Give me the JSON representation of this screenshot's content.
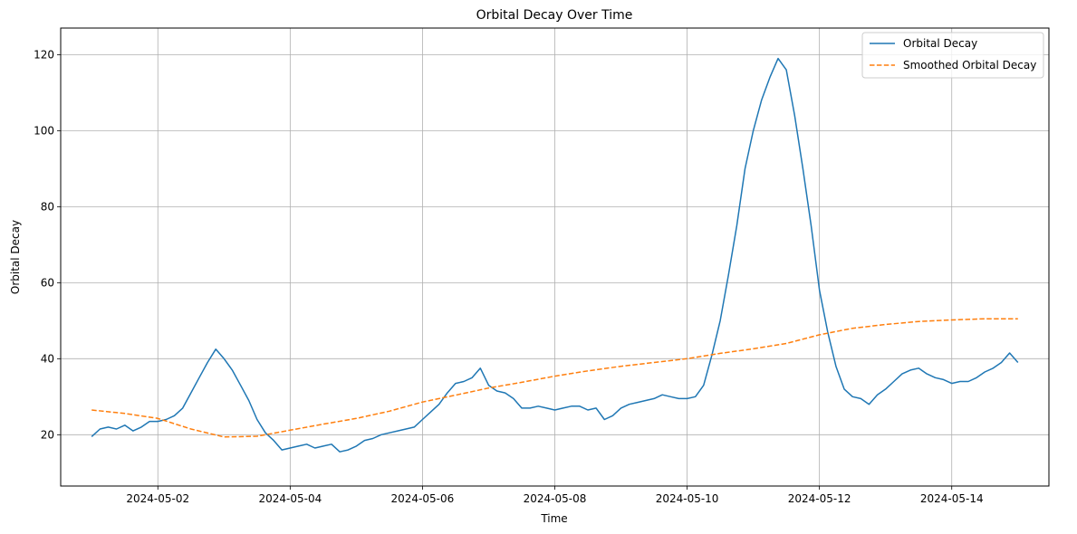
{
  "chart_data": {
    "type": "line",
    "title": "Orbital Decay Over Time",
    "xlabel": "Time",
    "ylabel": "Orbital Decay",
    "xlim": [
      "2024-04-30T12:45",
      "2024-05-15T11:15"
    ],
    "ylim": [
      6.5,
      127
    ],
    "x_ticks": [
      "2024-05-02",
      "2024-05-04",
      "2024-05-06",
      "2024-05-08",
      "2024-05-10",
      "2024-05-12",
      "2024-05-14"
    ],
    "y_ticks": [
      20,
      40,
      60,
      80,
      100,
      120
    ],
    "grid": true,
    "legend_position": "top-right",
    "series": [
      {
        "name": "Orbital Decay",
        "color": "#1f77b4",
        "style": "solid",
        "points": [
          [
            "2024-05-01T00:00",
            19.5
          ],
          [
            "2024-05-01T03:00",
            21.5
          ],
          [
            "2024-05-01T06:00",
            22.0
          ],
          [
            "2024-05-01T09:00",
            21.5
          ],
          [
            "2024-05-01T12:00",
            22.5
          ],
          [
            "2024-05-01T15:00",
            21.0
          ],
          [
            "2024-05-01T18:00",
            22.0
          ],
          [
            "2024-05-01T21:00",
            23.5
          ],
          [
            "2024-05-02T00:00",
            23.5
          ],
          [
            "2024-05-02T03:00",
            24.0
          ],
          [
            "2024-05-02T06:00",
            25.0
          ],
          [
            "2024-05-02T09:00",
            27.0
          ],
          [
            "2024-05-02T12:00",
            31.0
          ],
          [
            "2024-05-02T15:00",
            35.0
          ],
          [
            "2024-05-02T18:00",
            39.0
          ],
          [
            "2024-05-02T21:00",
            42.5
          ],
          [
            "2024-05-03T00:00",
            40.0
          ],
          [
            "2024-05-03T03:00",
            37.0
          ],
          [
            "2024-05-03T06:00",
            33.0
          ],
          [
            "2024-05-03T09:00",
            29.0
          ],
          [
            "2024-05-03T12:00",
            24.0
          ],
          [
            "2024-05-03T15:00",
            20.5
          ],
          [
            "2024-05-03T18:00",
            18.5
          ],
          [
            "2024-05-03T21:00",
            16.0
          ],
          [
            "2024-05-04T00:00",
            16.5
          ],
          [
            "2024-05-04T03:00",
            17.0
          ],
          [
            "2024-05-04T06:00",
            17.5
          ],
          [
            "2024-05-04T09:00",
            16.5
          ],
          [
            "2024-05-04T12:00",
            17.0
          ],
          [
            "2024-05-04T15:00",
            17.5
          ],
          [
            "2024-05-04T18:00",
            15.5
          ],
          [
            "2024-05-04T21:00",
            16.0
          ],
          [
            "2024-05-05T00:00",
            17.0
          ],
          [
            "2024-05-05T03:00",
            18.5
          ],
          [
            "2024-05-05T06:00",
            19.0
          ],
          [
            "2024-05-05T09:00",
            20.0
          ],
          [
            "2024-05-05T12:00",
            20.5
          ],
          [
            "2024-05-05T15:00",
            21.0
          ],
          [
            "2024-05-05T18:00",
            21.5
          ],
          [
            "2024-05-05T21:00",
            22.0
          ],
          [
            "2024-05-06T00:00",
            24.0
          ],
          [
            "2024-05-06T03:00",
            26.0
          ],
          [
            "2024-05-06T06:00",
            28.0
          ],
          [
            "2024-05-06T09:00",
            31.0
          ],
          [
            "2024-05-06T12:00",
            33.5
          ],
          [
            "2024-05-06T15:00",
            34.0
          ],
          [
            "2024-05-06T18:00",
            35.0
          ],
          [
            "2024-05-06T21:00",
            37.5
          ],
          [
            "2024-05-07T00:00",
            33.0
          ],
          [
            "2024-05-07T03:00",
            31.5
          ],
          [
            "2024-05-07T06:00",
            31.0
          ],
          [
            "2024-05-07T09:00",
            29.5
          ],
          [
            "2024-05-07T12:00",
            27.0
          ],
          [
            "2024-05-07T15:00",
            27.0
          ],
          [
            "2024-05-07T18:00",
            27.5
          ],
          [
            "2024-05-07T21:00",
            27.0
          ],
          [
            "2024-05-08T00:00",
            26.5
          ],
          [
            "2024-05-08T03:00",
            27.0
          ],
          [
            "2024-05-08T06:00",
            27.5
          ],
          [
            "2024-05-08T09:00",
            27.5
          ],
          [
            "2024-05-08T12:00",
            26.5
          ],
          [
            "2024-05-08T15:00",
            27.0
          ],
          [
            "2024-05-08T18:00",
            24.0
          ],
          [
            "2024-05-08T21:00",
            25.0
          ],
          [
            "2024-05-09T00:00",
            27.0
          ],
          [
            "2024-05-09T03:00",
            28.0
          ],
          [
            "2024-05-09T06:00",
            28.5
          ],
          [
            "2024-05-09T09:00",
            29.0
          ],
          [
            "2024-05-09T12:00",
            29.5
          ],
          [
            "2024-05-09T15:00",
            30.5
          ],
          [
            "2024-05-09T18:00",
            30.0
          ],
          [
            "2024-05-09T21:00",
            29.5
          ],
          [
            "2024-05-10T00:00",
            29.5
          ],
          [
            "2024-05-10T03:00",
            30.0
          ],
          [
            "2024-05-10T06:00",
            33.0
          ],
          [
            "2024-05-10T09:00",
            41.0
          ],
          [
            "2024-05-10T12:00",
            50.0
          ],
          [
            "2024-05-10T15:00",
            62.0
          ],
          [
            "2024-05-10T18:00",
            75.0
          ],
          [
            "2024-05-10T21:00",
            90.0
          ],
          [
            "2024-05-11T00:00",
            100.0
          ],
          [
            "2024-05-11T03:00",
            108.0
          ],
          [
            "2024-05-11T06:00",
            114.0
          ],
          [
            "2024-05-11T09:00",
            119.0
          ],
          [
            "2024-05-11T12:00",
            116.0
          ],
          [
            "2024-05-11T15:00",
            104.0
          ],
          [
            "2024-05-11T18:00",
            90.0
          ],
          [
            "2024-05-11T21:00",
            75.0
          ],
          [
            "2024-05-12T00:00",
            58.0
          ],
          [
            "2024-05-12T03:00",
            47.0
          ],
          [
            "2024-05-12T06:00",
            38.0
          ],
          [
            "2024-05-12T09:00",
            32.0
          ],
          [
            "2024-05-12T12:00",
            30.0
          ],
          [
            "2024-05-12T15:00",
            29.5
          ],
          [
            "2024-05-12T18:00",
            28.0
          ],
          [
            "2024-05-12T21:00",
            30.5
          ],
          [
            "2024-05-13T00:00",
            32.0
          ],
          [
            "2024-05-13T03:00",
            34.0
          ],
          [
            "2024-05-13T06:00",
            36.0
          ],
          [
            "2024-05-13T09:00",
            37.0
          ],
          [
            "2024-05-13T12:00",
            37.5
          ],
          [
            "2024-05-13T15:00",
            36.0
          ],
          [
            "2024-05-13T18:00",
            35.0
          ],
          [
            "2024-05-13T21:00",
            34.5
          ],
          [
            "2024-05-14T00:00",
            33.5
          ],
          [
            "2024-05-14T03:00",
            34.0
          ],
          [
            "2024-05-14T06:00",
            34.0
          ],
          [
            "2024-05-14T09:00",
            35.0
          ],
          [
            "2024-05-14T12:00",
            36.5
          ],
          [
            "2024-05-14T15:00",
            37.5
          ],
          [
            "2024-05-14T18:00",
            39.0
          ],
          [
            "2024-05-14T21:00",
            41.5
          ],
          [
            "2024-05-15T00:00",
            39.0
          ]
        ]
      },
      {
        "name": "Smoothed Orbital Decay",
        "color": "#ff7f0e",
        "style": "dashed",
        "points": [
          [
            "2024-05-01T00:00",
            26.5
          ],
          [
            "2024-05-01T12:00",
            25.6
          ],
          [
            "2024-05-02T00:00",
            24.3
          ],
          [
            "2024-05-02T12:00",
            21.5
          ],
          [
            "2024-05-03T00:00",
            19.4
          ],
          [
            "2024-05-03T12:00",
            19.6
          ],
          [
            "2024-05-04T00:00",
            21.2
          ],
          [
            "2024-05-04T12:00",
            22.8
          ],
          [
            "2024-05-05T00:00",
            24.3
          ],
          [
            "2024-05-05T12:00",
            26.2
          ],
          [
            "2024-05-06T00:00",
            28.6
          ],
          [
            "2024-05-06T12:00",
            30.4
          ],
          [
            "2024-05-07T00:00",
            32.3
          ],
          [
            "2024-05-07T12:00",
            33.8
          ],
          [
            "2024-05-08T00:00",
            35.4
          ],
          [
            "2024-05-08T12:00",
            36.8
          ],
          [
            "2024-05-09T00:00",
            38.0
          ],
          [
            "2024-05-09T12:00",
            39.0
          ],
          [
            "2024-05-10T00:00",
            40.0
          ],
          [
            "2024-05-10T12:00",
            41.4
          ],
          [
            "2024-05-11T00:00",
            42.6
          ],
          [
            "2024-05-11T12:00",
            44.0
          ],
          [
            "2024-05-12T00:00",
            46.3
          ],
          [
            "2024-05-12T12:00",
            48.0
          ],
          [
            "2024-05-13T00:00",
            49.0
          ],
          [
            "2024-05-13T12:00",
            49.8
          ],
          [
            "2024-05-14T00:00",
            50.2
          ],
          [
            "2024-05-14T12:00",
            50.5
          ],
          [
            "2024-05-15T00:00",
            50.5
          ]
        ]
      }
    ]
  }
}
